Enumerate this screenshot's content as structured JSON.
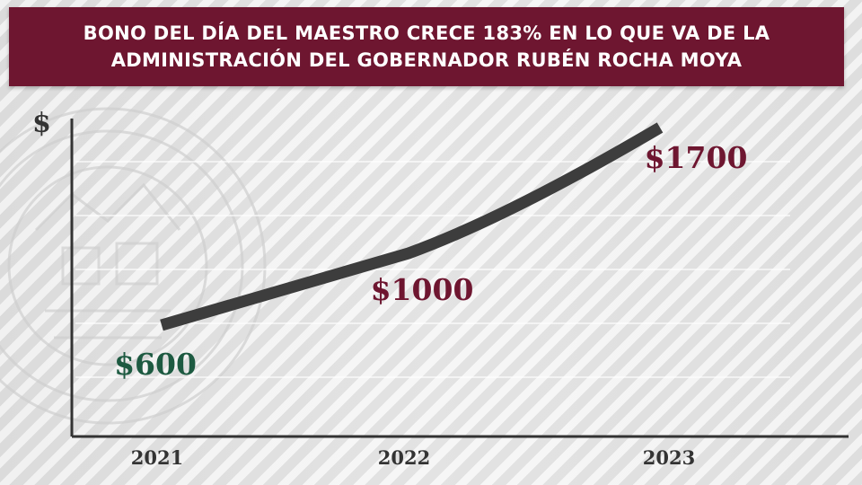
{
  "header": {
    "title_line1": "BONO DEL DÍA DEL MAESTRO CRECE 183% EN LO QUE VA DE LA",
    "title_line2": "ADMINISTRACIÓN DEL GOBERNADOR RUBÉN ROCHA MOYA"
  },
  "colors": {
    "banner": "#6e1630",
    "line": "#3d3d3d",
    "label_green": "#1d5a41",
    "label_maroon": "#6e1630",
    "axis": "#333333"
  },
  "chart_data": {
    "type": "line",
    "title": "BONO DEL DÍA DEL MAESTRO CRECE 183% EN LO QUE VA DE LA ADMINISTRACIÓN DEL GOBERNADOR RUBÉN ROCHA MOYA",
    "xlabel": "",
    "ylabel": "$",
    "categories": [
      "2021",
      "2022",
      "2023"
    ],
    "series": [
      {
        "values": [
          600,
          1000,
          1700
        ],
        "labels": [
          "$600",
          "$1000",
          "$1700"
        ]
      }
    ],
    "grid": true,
    "legend": "none"
  }
}
